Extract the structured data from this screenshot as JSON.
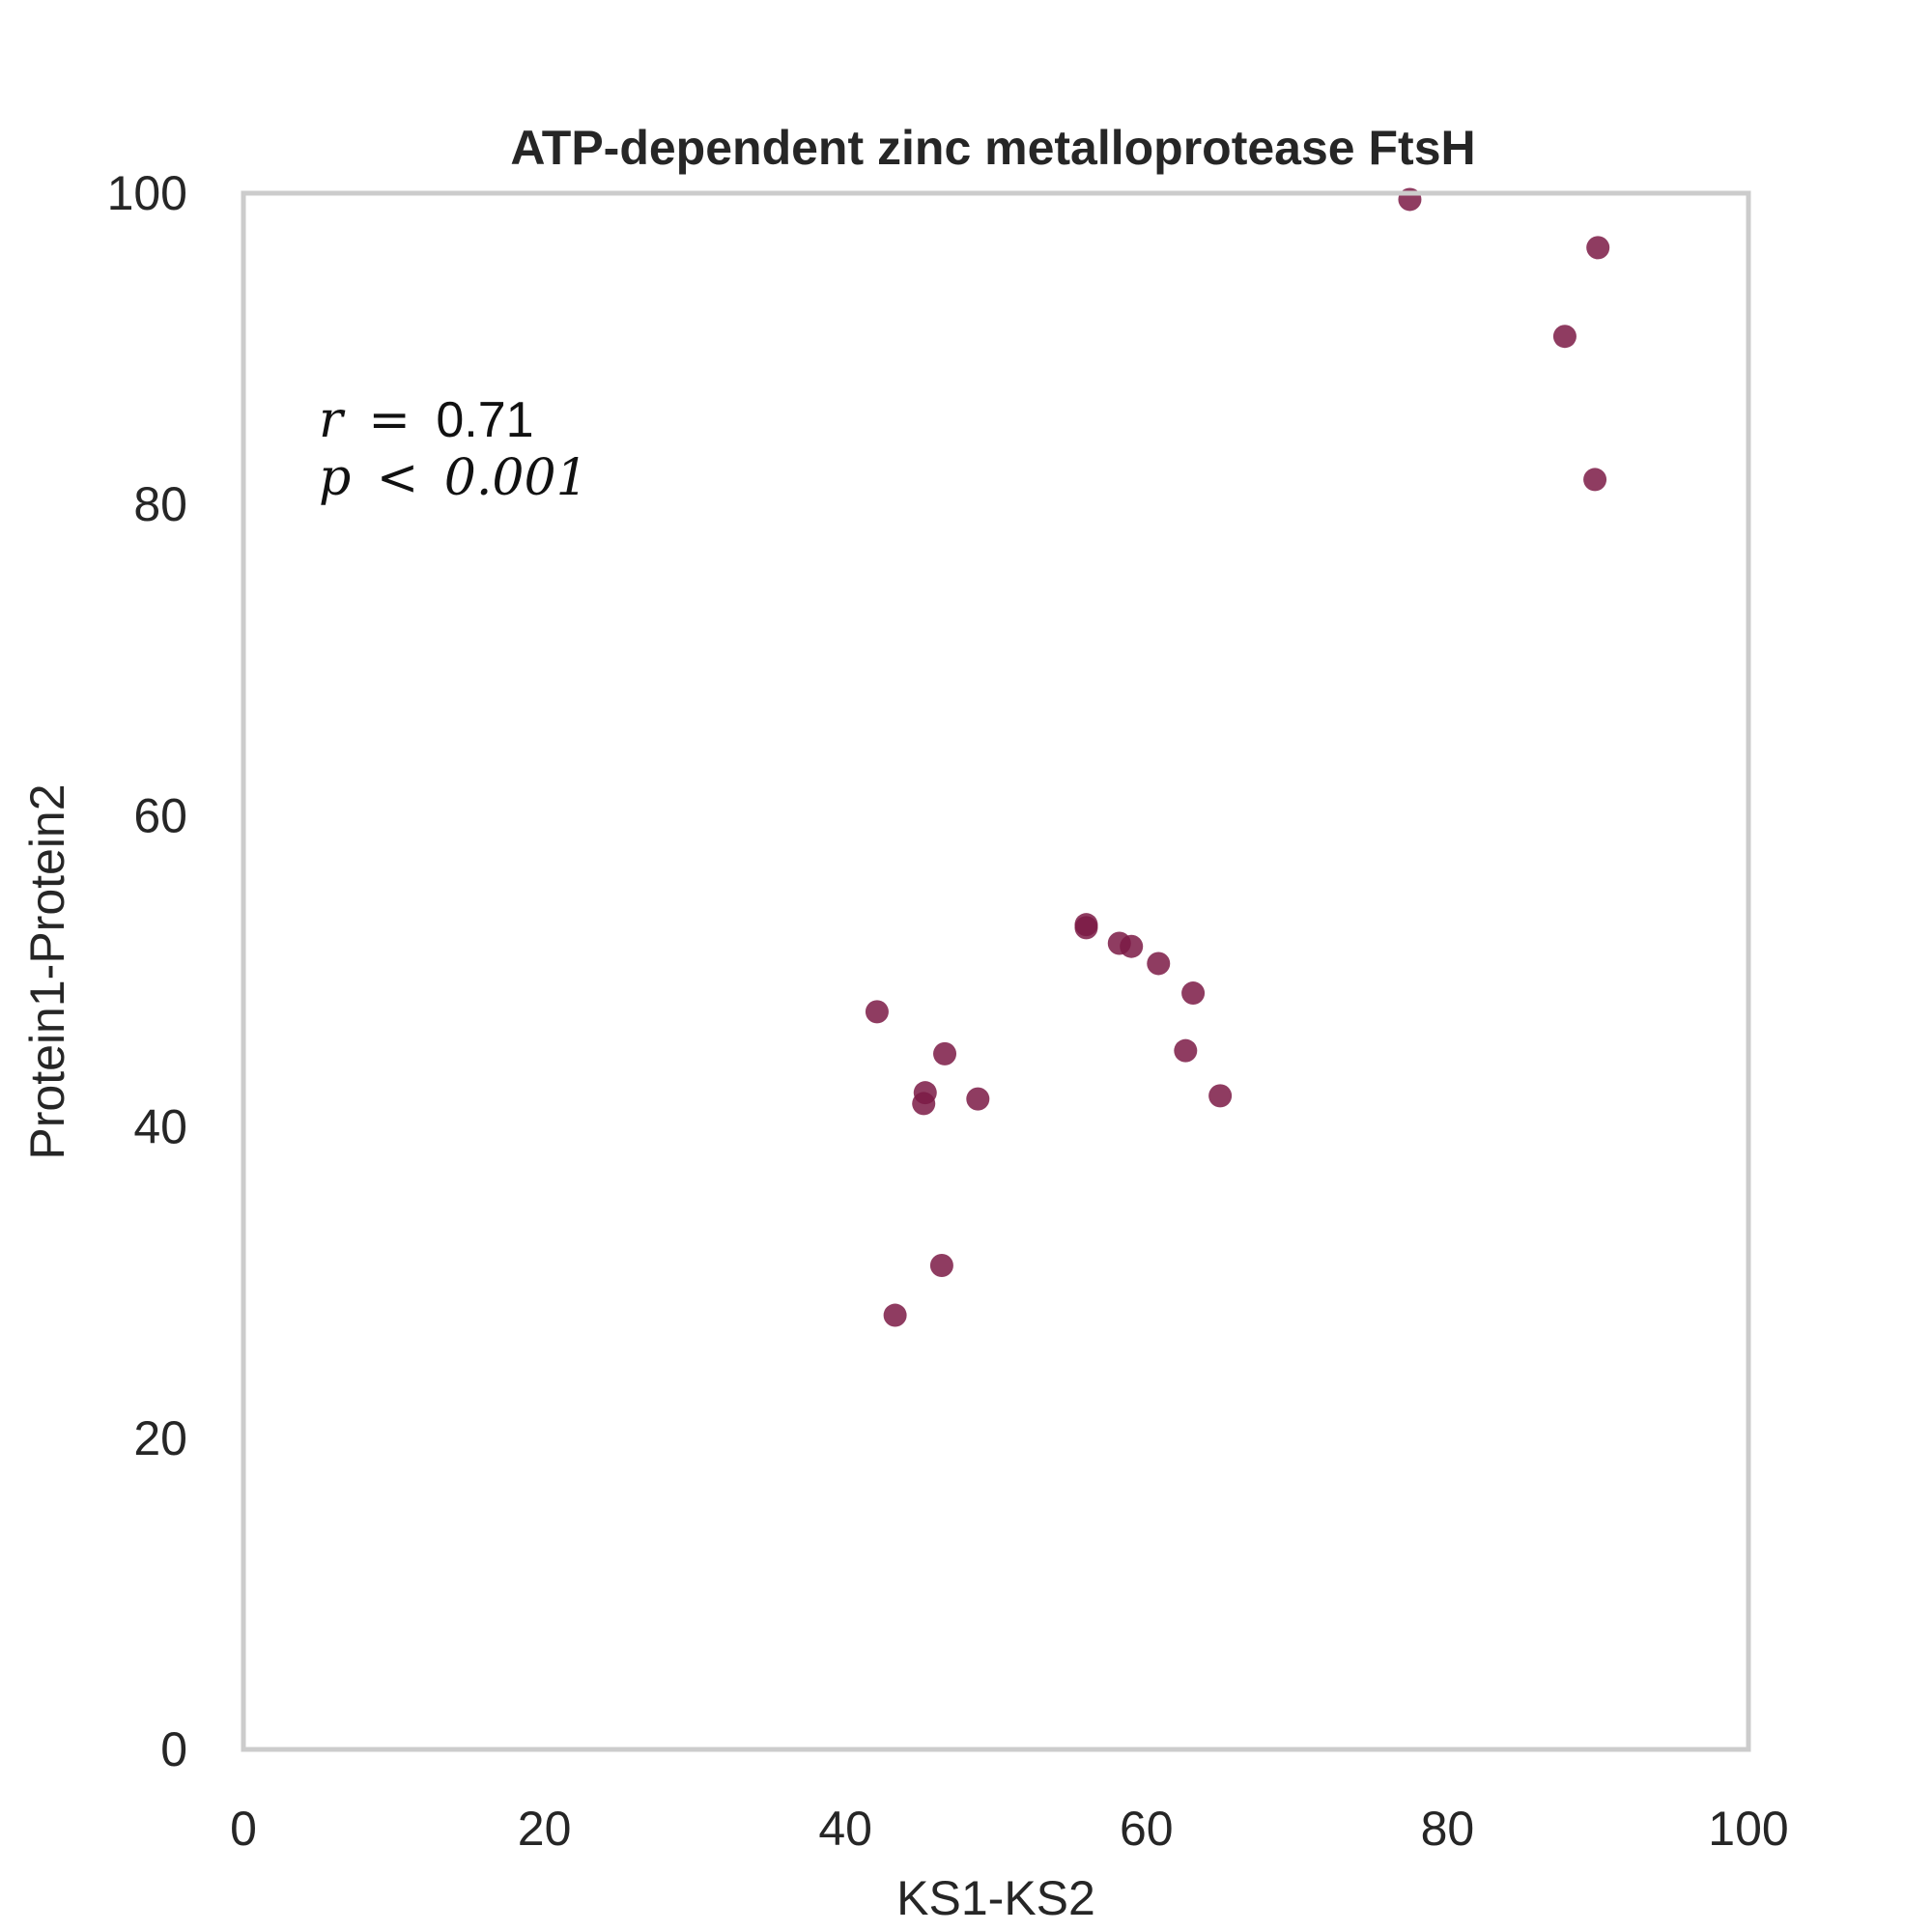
{
  "chart_data": {
    "type": "scatter",
    "title": "ATP-dependent zinc metalloprotease FtsH",
    "xlabel": "KS1-KS2",
    "ylabel": "Protein1-Protein2",
    "xlim": [
      0,
      100
    ],
    "ylim": [
      0,
      100
    ],
    "xticks": [
      0,
      20,
      40,
      60,
      80,
      100
    ],
    "yticks": [
      0,
      20,
      40,
      60,
      80,
      100
    ],
    "grid": false,
    "marker_color": "#7b1a45",
    "frame_color": "#cccccc",
    "annotation": {
      "r_symbol": "r",
      "r_operator": "=",
      "r_value": "0.71",
      "p_symbol": "p",
      "p_operator": "<",
      "p_value": "0.001"
    },
    "series": [
      {
        "points": [
          {
            "x": 77.5,
            "y": 99.6
          },
          {
            "x": 90.0,
            "y": 96.5
          },
          {
            "x": 87.8,
            "y": 90.8
          },
          {
            "x": 89.8,
            "y": 81.6
          },
          {
            "x": 56.0,
            "y": 53.0
          },
          {
            "x": 56.0,
            "y": 52.8
          },
          {
            "x": 58.2,
            "y": 51.8
          },
          {
            "x": 59.0,
            "y": 51.6
          },
          {
            "x": 60.8,
            "y": 50.5
          },
          {
            "x": 63.1,
            "y": 48.6
          },
          {
            "x": 42.1,
            "y": 47.4
          },
          {
            "x": 46.6,
            "y": 44.7
          },
          {
            "x": 62.6,
            "y": 44.9
          },
          {
            "x": 45.3,
            "y": 42.2
          },
          {
            "x": 45.2,
            "y": 41.5
          },
          {
            "x": 48.8,
            "y": 41.8
          },
          {
            "x": 64.9,
            "y": 42.0
          },
          {
            "x": 46.4,
            "y": 31.1
          },
          {
            "x": 43.3,
            "y": 27.9
          }
        ]
      }
    ]
  }
}
